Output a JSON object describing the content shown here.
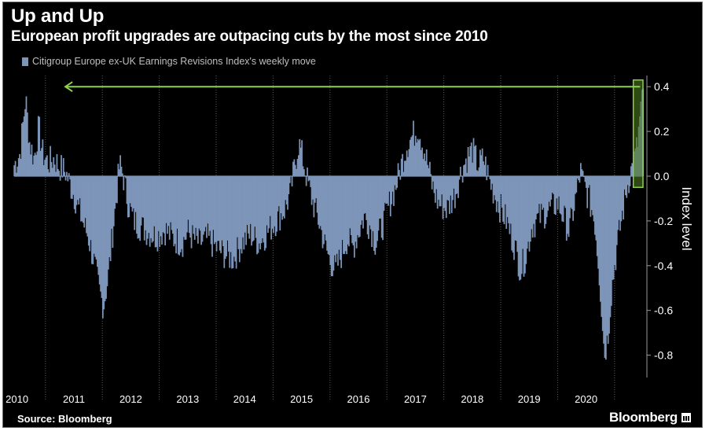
{
  "title": "Up and Up",
  "subtitle": "European profit upgrades are outpacing cuts by the most since 2010",
  "legend_label": "Citigroup Europe ex-UK Earnings Revisions Index's weekly move",
  "source": "Source: Bloomberg",
  "brand": "Bloomberg",
  "colors": {
    "bar": "#7d95b8",
    "highlight_fill": "#4f7a1e",
    "highlight_stroke": "#8fd14f",
    "arrow": "#8fd14f",
    "background": "#000000"
  },
  "chart_data": {
    "type": "bar",
    "ylabel": "Index level",
    "xlabel": "",
    "ylim": [
      -0.9,
      0.45
    ],
    "yticks": [
      0.4,
      0.2,
      0.0,
      -0.2,
      -0.4,
      -0.6,
      -0.8
    ],
    "ytick_labels": [
      "0.4",
      "0.2",
      "0.0",
      "-0.2",
      "-0.4",
      "-0.6",
      "-0.8"
    ],
    "x_range": [
      2009.95,
      2021.0
    ],
    "x_ticks": [
      2010,
      2011,
      2012,
      2013,
      2014,
      2015,
      2016,
      2017,
      2018,
      2019,
      2020
    ],
    "x_tick_labels": [
      "2010",
      "2011",
      "2012",
      "2013",
      "2014",
      "2015",
      "2016",
      "2017",
      "2018",
      "2019",
      "2020"
    ],
    "anchors": [
      [
        2009.95,
        0.05
      ],
      [
        2010.05,
        0.1
      ],
      [
        2010.1,
        0.22
      ],
      [
        2010.15,
        0.35
      ],
      [
        2010.22,
        0.15
      ],
      [
        2010.3,
        0.08
      ],
      [
        2010.38,
        0.22
      ],
      [
        2010.45,
        0.1
      ],
      [
        2010.55,
        0.06
      ],
      [
        2010.65,
        0.08
      ],
      [
        2010.75,
        0.04
      ],
      [
        2010.85,
        0.02
      ],
      [
        2010.95,
        -0.05
      ],
      [
        2011.05,
        -0.12
      ],
      [
        2011.15,
        -0.2
      ],
      [
        2011.25,
        -0.27
      ],
      [
        2011.35,
        -0.38
      ],
      [
        2011.45,
        -0.52
      ],
      [
        2011.52,
        -0.58
      ],
      [
        2011.6,
        -0.45
      ],
      [
        2011.68,
        -0.25
      ],
      [
        2011.75,
        -0.08
      ],
      [
        2011.8,
        0.05
      ],
      [
        2011.85,
        0.02
      ],
      [
        2011.9,
        -0.05
      ],
      [
        2011.95,
        -0.12
      ],
      [
        2012.05,
        -0.2
      ],
      [
        2012.15,
        -0.22
      ],
      [
        2012.3,
        -0.25
      ],
      [
        2012.45,
        -0.27
      ],
      [
        2012.6,
        -0.24
      ],
      [
        2012.75,
        -0.28
      ],
      [
        2012.9,
        -0.3
      ],
      [
        2013.0,
        -0.25
      ],
      [
        2013.1,
        -0.28
      ],
      [
        2013.2,
        -0.3
      ],
      [
        2013.35,
        -0.28
      ],
      [
        2013.5,
        -0.32
      ],
      [
        2013.65,
        -0.35
      ],
      [
        2013.8,
        -0.37
      ],
      [
        2013.95,
        -0.3
      ],
      [
        2014.1,
        -0.26
      ],
      [
        2014.25,
        -0.3
      ],
      [
        2014.4,
        -0.25
      ],
      [
        2014.55,
        -0.2
      ],
      [
        2014.7,
        -0.15
      ],
      [
        2014.8,
        -0.08
      ],
      [
        2014.88,
        0.05
      ],
      [
        2014.95,
        0.15
      ],
      [
        2015.02,
        0.08
      ],
      [
        2015.1,
        -0.02
      ],
      [
        2015.2,
        -0.12
      ],
      [
        2015.3,
        -0.2
      ],
      [
        2015.4,
        -0.3
      ],
      [
        2015.5,
        -0.38
      ],
      [
        2015.6,
        -0.42
      ],
      [
        2015.7,
        -0.35
      ],
      [
        2015.8,
        -0.28
      ],
      [
        2015.9,
        -0.32
      ],
      [
        2016.0,
        -0.25
      ],
      [
        2016.1,
        -0.18
      ],
      [
        2016.2,
        -0.22
      ],
      [
        2016.3,
        -0.3
      ],
      [
        2016.45,
        -0.2
      ],
      [
        2016.55,
        -0.12
      ],
      [
        2016.65,
        -0.05
      ],
      [
        2016.75,
        0.05
      ],
      [
        2016.85,
        0.14
      ],
      [
        2016.95,
        0.18
      ],
      [
        2017.05,
        0.22
      ],
      [
        2017.15,
        0.12
      ],
      [
        2017.22,
        0.05
      ],
      [
        2017.3,
        -0.05
      ],
      [
        2017.4,
        -0.12
      ],
      [
        2017.55,
        -0.15
      ],
      [
        2017.7,
        -0.08
      ],
      [
        2017.8,
        0.02
      ],
      [
        2017.9,
        0.08
      ],
      [
        2018.0,
        0.12
      ],
      [
        2018.1,
        0.05
      ],
      [
        2018.2,
        0.08
      ],
      [
        2018.3,
        -0.02
      ],
      [
        2018.45,
        -0.12
      ],
      [
        2018.6,
        -0.2
      ],
      [
        2018.75,
        -0.32
      ],
      [
        2018.85,
        -0.42
      ],
      [
        2018.95,
        -0.35
      ],
      [
        2019.05,
        -0.22
      ],
      [
        2019.2,
        -0.18
      ],
      [
        2019.35,
        -0.15
      ],
      [
        2019.5,
        -0.12
      ],
      [
        2019.6,
        -0.18
      ],
      [
        2019.7,
        -0.25
      ],
      [
        2019.8,
        -0.12
      ],
      [
        2019.85,
        -0.05
      ],
      [
        2019.9,
        0.02
      ],
      [
        2019.95,
        -0.03
      ],
      [
        2020.05,
        -0.1
      ],
      [
        2020.15,
        -0.2
      ],
      [
        2020.22,
        -0.4
      ],
      [
        2020.28,
        -0.62
      ],
      [
        2020.32,
        -0.8
      ],
      [
        2020.38,
        -0.72
      ],
      [
        2020.45,
        -0.5
      ],
      [
        2020.55,
        -0.3
      ],
      [
        2020.65,
        -0.15
      ],
      [
        2020.72,
        -0.05
      ],
      [
        2020.78,
        0.02
      ],
      [
        2020.83,
        0.05
      ],
      [
        2020.87,
        0.1
      ],
      [
        2020.91,
        0.16
      ],
      [
        2020.95,
        0.28
      ],
      [
        2021.0,
        0.36
      ]
    ],
    "annotation": {
      "type": "arrow-and-box",
      "arrow_from_x": 2020.95,
      "arrow_to_x": 2010.85,
      "arrow_y": 0.4,
      "box_x": [
        2020.83,
        2021.0
      ],
      "box_y": [
        -0.05,
        0.43
      ]
    }
  }
}
